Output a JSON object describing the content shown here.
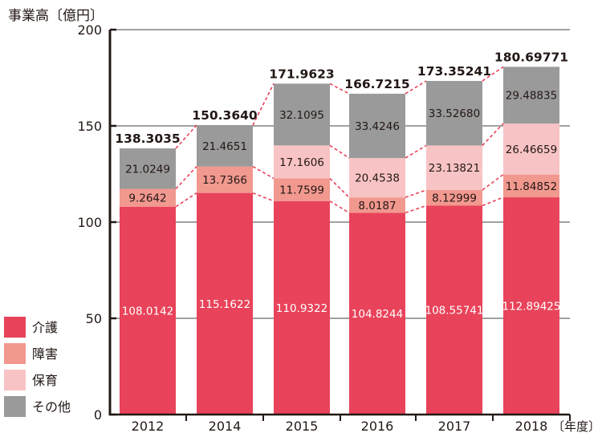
{
  "chart_data": {
    "type": "bar",
    "stacked": true,
    "ylabel": "事業高〔億円〕",
    "xlabel": "〔年度〕",
    "ylim": [
      0,
      200
    ],
    "yticks": [
      0,
      50,
      100,
      150,
      200
    ],
    "grid": true,
    "legend_position": "bottom-left",
    "categories": [
      "2012",
      "2014",
      "2015",
      "2016",
      "2017",
      "2018"
    ],
    "series": [
      {
        "name": "介護",
        "color": "#e8435a",
        "values": [
          108.0142,
          115.1622,
          110.9322,
          104.8244,
          108.55741,
          112.89425
        ],
        "labels": [
          "108.0142",
          "115.1622",
          "110.9322",
          "104.8244",
          "108.55741",
          "112.89425"
        ]
      },
      {
        "name": "障害",
        "color": "#f1988f",
        "values": [
          9.2642,
          13.7366,
          11.7599,
          8.0187,
          8.12999,
          11.84852
        ],
        "labels": [
          "9.2642",
          "13.7366",
          "11.7599",
          "8.0187",
          "8.12999",
          "11.84852"
        ]
      },
      {
        "name": "保育",
        "color": "#f8c3c4",
        "values": [
          0,
          0,
          17.1606,
          20.4538,
          23.13821,
          26.46659
        ],
        "labels": [
          "",
          "",
          "17.1606",
          "20.4538",
          "23.13821",
          "26.46659"
        ]
      },
      {
        "name": "その他",
        "color": "#9a9a9a",
        "values": [
          21.0249,
          21.4651,
          32.1095,
          33.4246,
          33.5268,
          29.48835
        ],
        "labels": [
          "21.0249",
          "21.4651",
          "32.1095",
          "33.4246",
          "33.52680",
          "29.48835"
        ]
      }
    ],
    "totals": [
      138.3035,
      150.364,
      171.9623,
      166.7215,
      173.35241,
      180.69771
    ],
    "total_labels": [
      "138.3035",
      "150.3640",
      "171.9623",
      "166.7215",
      "173.35241",
      "180.69771"
    ]
  },
  "colors": {
    "connector": "#e8435a",
    "axis": "#231815",
    "grid": "#a0a0a0"
  }
}
